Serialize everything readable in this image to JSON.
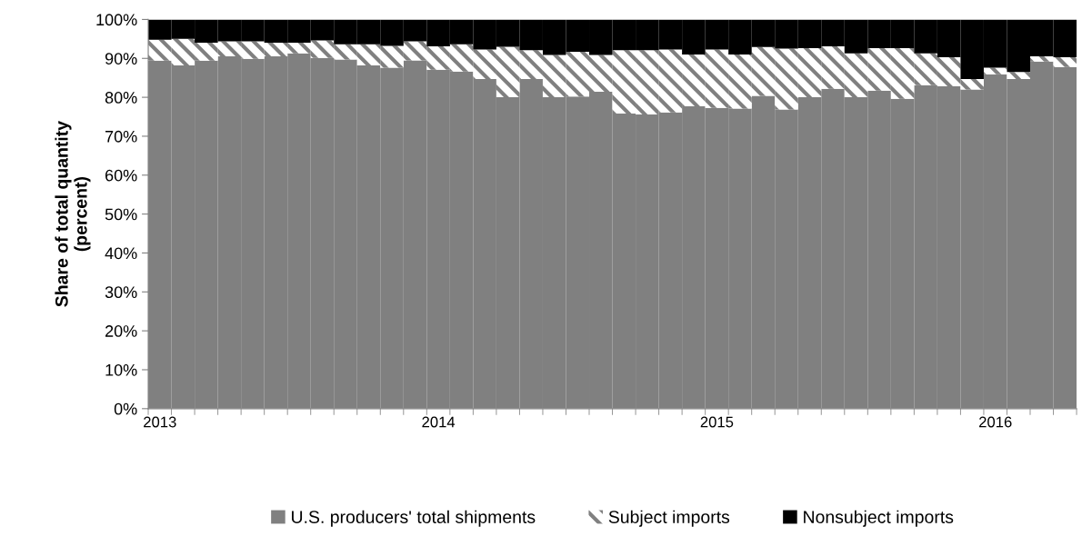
{
  "chart_data": {
    "type": "bar",
    "stacked": true,
    "ylabel": "Share of total quantity\n(percent)",
    "categories": [
      "2013",
      null,
      null,
      null,
      null,
      null,
      null,
      null,
      null,
      null,
      null,
      null,
      "2014",
      null,
      null,
      null,
      null,
      null,
      null,
      null,
      null,
      null,
      null,
      null,
      "2015",
      null,
      null,
      null,
      null,
      null,
      null,
      null,
      null,
      null,
      null,
      null,
      "2016",
      null,
      null,
      null
    ],
    "series": [
      {
        "name": "U.S. producers' total shipments",
        "color": "#808080",
        "values": [
          89.4,
          88.2,
          89.4,
          90.5,
          89.9,
          90.5,
          91.3,
          90.1,
          89.7,
          88.2,
          87.6,
          89.5,
          87.1,
          86.6,
          84.7,
          80.0,
          84.7,
          80.0,
          80.2,
          81.4,
          75.8,
          75.6,
          76.1,
          77.7,
          77.3,
          77.1,
          80.4,
          76.9,
          80.0,
          82.2,
          80.0,
          81.7,
          79.6,
          83.1,
          82.8,
          82.0,
          85.9,
          84.7,
          89.2,
          87.8
        ]
      },
      {
        "name": "Subject imports",
        "color": "#ffffff",
        "values": [
          5.4,
          6.8,
          4.6,
          3.9,
          4.5,
          3.5,
          2.7,
          4.5,
          3.9,
          5.4,
          5.6,
          4.9,
          6.0,
          7.0,
          7.6,
          13.0,
          7.4,
          10.9,
          11.5,
          9.5,
          16.3,
          16.5,
          16.2,
          13.3,
          15.0,
          13.9,
          12.5,
          15.6,
          12.6,
          10.9,
          11.3,
          10.9,
          13.0,
          8.2,
          7.5,
          2.7,
          1.7,
          1.8,
          1.3,
          2.5
        ]
      },
      {
        "name": "Nonsubject imports",
        "color": "#000000",
        "values": [
          5.2,
          5.0,
          6.0,
          5.6,
          5.6,
          6.0,
          6.0,
          5.4,
          6.4,
          6.4,
          6.8,
          5.6,
          6.9,
          6.4,
          7.7,
          7.0,
          7.9,
          9.1,
          8.3,
          9.1,
          7.9,
          7.9,
          7.7,
          9.0,
          7.7,
          9.0,
          7.1,
          7.5,
          7.4,
          6.9,
          8.7,
          7.4,
          7.4,
          8.7,
          9.7,
          15.3,
          12.4,
          13.5,
          9.5,
          9.7
        ]
      }
    ],
    "ylim": [
      0,
      100
    ],
    "yticks": [
      {
        "value": 0,
        "label": "0%"
      },
      {
        "value": 10,
        "label": "10%"
      },
      {
        "value": 20,
        "label": "20%"
      },
      {
        "value": 30,
        "label": "30%"
      },
      {
        "value": 40,
        "label": "40%"
      },
      {
        "value": 50,
        "label": "50%"
      },
      {
        "value": 60,
        "label": "60%"
      },
      {
        "value": 70,
        "label": "70%"
      },
      {
        "value": 80,
        "label": "80%"
      },
      {
        "value": 90,
        "label": "90%"
      },
      {
        "value": 100,
        "label": "100%"
      }
    ],
    "grid": false,
    "legend": "bottom"
  }
}
